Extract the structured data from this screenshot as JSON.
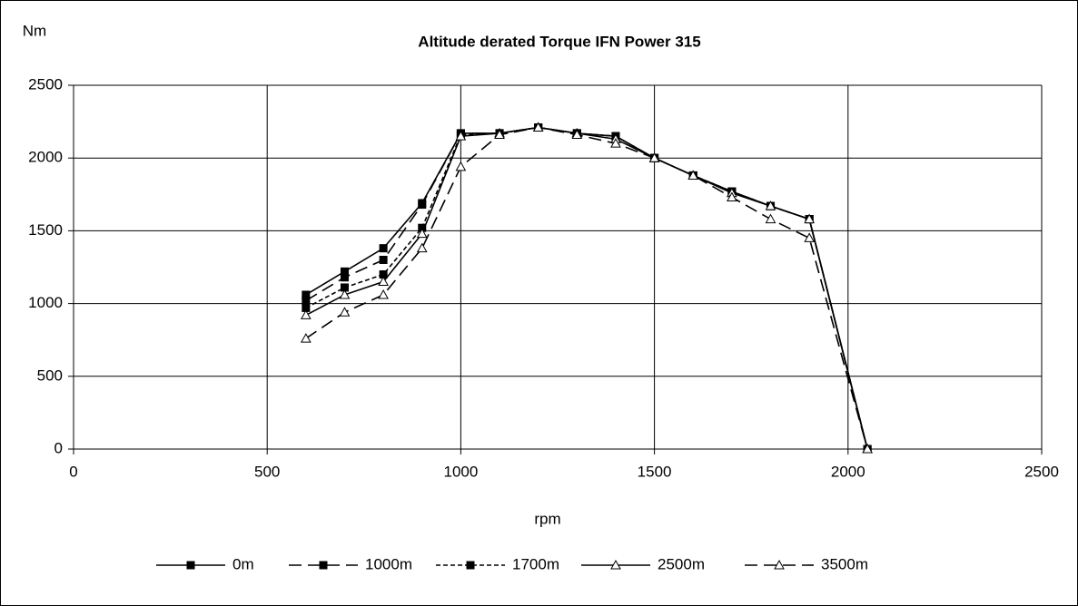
{
  "chart_data": {
    "type": "line",
    "title": "Altitude derated Torque  IFN Power 315",
    "y_label": "Nm",
    "x_label": "rpm",
    "x": [
      600,
      700,
      800,
      900,
      1000,
      1100,
      1200,
      1300,
      1400,
      1500,
      1600,
      1700,
      1800,
      1900,
      2050
    ],
    "series": [
      {
        "name": "0m",
        "color": "#000000",
        "dash": "solid",
        "marker": "square",
        "values": [
          1060,
          1220,
          1380,
          1690,
          2170,
          2170,
          2210,
          2170,
          2150,
          2000,
          1880,
          1770,
          1670,
          1580,
          0
        ]
      },
      {
        "name": "1000m",
        "color": "#000000",
        "dash": "dash",
        "marker": "square",
        "values": [
          1020,
          1180,
          1300,
          1680,
          2170,
          2170,
          2210,
          2170,
          2150,
          2000,
          1880,
          1770,
          1670,
          1580,
          0
        ]
      },
      {
        "name": "1700m",
        "color": "#000000",
        "dash": "short-dash",
        "marker": "square",
        "values": [
          970,
          1110,
          1200,
          1520,
          2160,
          2170,
          2210,
          2170,
          2150,
          2000,
          1880,
          1770,
          1670,
          1580,
          0
        ]
      },
      {
        "name": "2500m",
        "color": "#000000",
        "dash": "solid",
        "marker": "triangle",
        "values": [
          920,
          1060,
          1150,
          1480,
          2150,
          2170,
          2210,
          2170,
          2130,
          2000,
          1880,
          1760,
          1670,
          1580,
          0
        ]
      },
      {
        "name": "3500m",
        "color": "#000000",
        "dash": "dash",
        "marker": "triangle",
        "values": [
          760,
          940,
          1060,
          1380,
          1940,
          2160,
          2210,
          2160,
          2100,
          2000,
          1880,
          1730,
          1580,
          1450,
          0
        ]
      }
    ],
    "xlim": [
      0,
      2500
    ],
    "xticks": [
      0,
      500,
      1000,
      1500,
      2000,
      2500
    ],
    "ylim": [
      0,
      2500
    ],
    "yticks": [
      0,
      500,
      1000,
      1500,
      2000,
      2500
    ],
    "grid": true,
    "legend": "bottom"
  }
}
